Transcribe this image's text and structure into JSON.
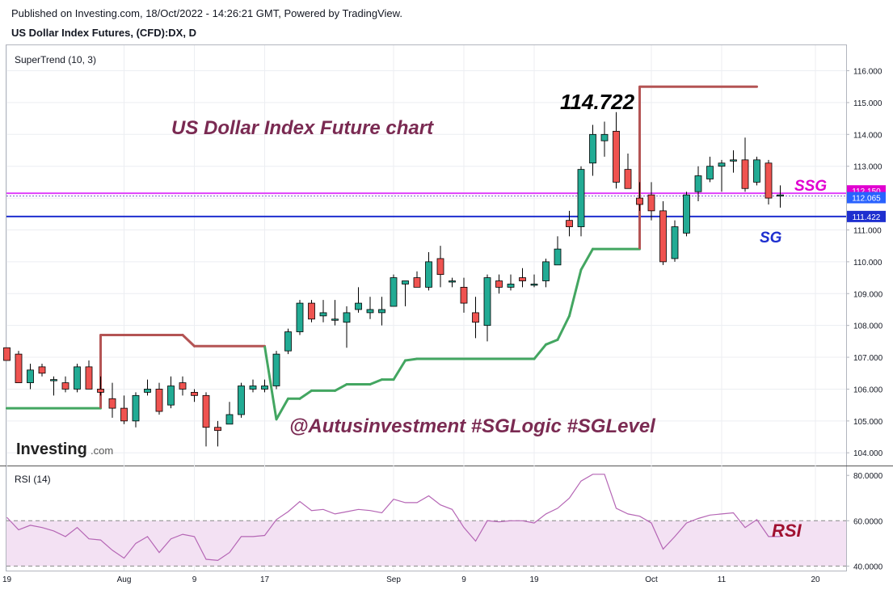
{
  "header": {
    "published": "Published on Investing.com, 18/Oct/2022 - 14:26:21 GMT, Powered by TradingView.",
    "symbol": "US Dollar Index Futures, (CFD):DX, D"
  },
  "logo": {
    "text": "Investing",
    "suffix": ".com"
  },
  "colors": {
    "up": "#26a69a",
    "up_fill": "#22ab94",
    "down": "#ef5350",
    "supertrend_up": "#43a661",
    "supertrend_down": "#b45454",
    "ssg_line": "#e040fb",
    "sg_line": "#1e2fcf",
    "rsi_line": "#b566b5",
    "rsi_band": "#f3e1f3"
  },
  "chart_data": [
    {
      "type": "candlestick",
      "indicator_label": "SuperTrend (10, 3)",
      "ylim": [
        103.6,
        116.8
      ],
      "y_ticks": [
        "104.000",
        "105.000",
        "106.000",
        "107.000",
        "108.000",
        "109.000",
        "110.000",
        "111.000",
        "112.000",
        "113.000",
        "114.000",
        "115.000",
        "116.000"
      ],
      "x_ticks": [
        {
          "label": "19",
          "index": 0
        },
        {
          "label": "Aug",
          "index": 10
        },
        {
          "label": "9",
          "index": 16
        },
        {
          "label": "17",
          "index": 22
        },
        {
          "label": "Sep",
          "index": 33
        },
        {
          "label": "9",
          "index": 39
        },
        {
          "label": "19",
          "index": 45
        },
        {
          "label": "Oct",
          "index": 55
        },
        {
          "label": "11",
          "index": 61
        },
        {
          "label": "20",
          "index": 69
        }
      ],
      "candles": [
        {
          "o": 107.3,
          "h": 107.3,
          "l": 106.9,
          "c": 106.9
        },
        {
          "o": 107.1,
          "h": 107.2,
          "l": 106.2,
          "c": 106.2
        },
        {
          "o": 106.2,
          "h": 106.8,
          "l": 106.0,
          "c": 106.6
        },
        {
          "o": 106.7,
          "h": 106.8,
          "l": 106.4,
          "c": 106.5
        },
        {
          "o": 106.3,
          "h": 106.4,
          "l": 105.8,
          "c": 106.3
        },
        {
          "o": 106.2,
          "h": 106.4,
          "l": 105.9,
          "c": 106.0
        },
        {
          "o": 106.0,
          "h": 106.8,
          "l": 105.9,
          "c": 106.7
        },
        {
          "o": 106.7,
          "h": 106.9,
          "l": 106.0,
          "c": 106.0
        },
        {
          "o": 106.0,
          "h": 106.4,
          "l": 105.8,
          "c": 105.9
        },
        {
          "o": 105.7,
          "h": 106.2,
          "l": 105.1,
          "c": 105.4
        },
        {
          "o": 105.4,
          "h": 105.8,
          "l": 104.9,
          "c": 105.0
        },
        {
          "o": 105.0,
          "h": 105.9,
          "l": 104.8,
          "c": 105.8
        },
        {
          "o": 105.9,
          "h": 106.3,
          "l": 105.8,
          "c": 106.0
        },
        {
          "o": 106.0,
          "h": 106.2,
          "l": 105.2,
          "c": 105.3
        },
        {
          "o": 105.5,
          "h": 106.4,
          "l": 105.4,
          "c": 106.1
        },
        {
          "o": 106.2,
          "h": 106.4,
          "l": 105.8,
          "c": 106.0
        },
        {
          "o": 105.9,
          "h": 106.0,
          "l": 105.6,
          "c": 105.8
        },
        {
          "o": 105.8,
          "h": 105.9,
          "l": 104.2,
          "c": 104.8
        },
        {
          "o": 104.8,
          "h": 105.0,
          "l": 104.2,
          "c": 104.7
        },
        {
          "o": 104.9,
          "h": 105.6,
          "l": 104.9,
          "c": 105.2
        },
        {
          "o": 105.2,
          "h": 106.2,
          "l": 105.1,
          "c": 106.1
        },
        {
          "o": 106.0,
          "h": 106.3,
          "l": 105.9,
          "c": 106.1
        },
        {
          "o": 106.0,
          "h": 106.3,
          "l": 105.9,
          "c": 106.1
        },
        {
          "o": 106.1,
          "h": 107.2,
          "l": 106.0,
          "c": 107.1
        },
        {
          "o": 107.2,
          "h": 107.9,
          "l": 107.1,
          "c": 107.8
        },
        {
          "o": 107.8,
          "h": 108.8,
          "l": 107.7,
          "c": 108.7
        },
        {
          "o": 108.7,
          "h": 108.8,
          "l": 108.1,
          "c": 108.2
        },
        {
          "o": 108.3,
          "h": 108.8,
          "l": 108.1,
          "c": 108.4
        },
        {
          "o": 108.2,
          "h": 108.8,
          "l": 108.0,
          "c": 108.2
        },
        {
          "o": 108.1,
          "h": 108.6,
          "l": 107.3,
          "c": 108.4
        },
        {
          "o": 108.5,
          "h": 109.2,
          "l": 108.4,
          "c": 108.7
        },
        {
          "o": 108.4,
          "h": 108.9,
          "l": 108.2,
          "c": 108.5
        },
        {
          "o": 108.4,
          "h": 108.9,
          "l": 108.0,
          "c": 108.5
        },
        {
          "o": 108.6,
          "h": 109.6,
          "l": 108.6,
          "c": 109.5
        },
        {
          "o": 109.3,
          "h": 109.4,
          "l": 108.6,
          "c": 109.4
        },
        {
          "o": 109.5,
          "h": 109.7,
          "l": 109.2,
          "c": 109.2
        },
        {
          "o": 109.2,
          "h": 110.3,
          "l": 109.1,
          "c": 110.0
        },
        {
          "o": 110.1,
          "h": 110.5,
          "l": 109.2,
          "c": 109.6
        },
        {
          "o": 109.4,
          "h": 109.5,
          "l": 109.2,
          "c": 109.4
        },
        {
          "o": 109.2,
          "h": 109.5,
          "l": 108.4,
          "c": 108.7
        },
        {
          "o": 108.4,
          "h": 108.9,
          "l": 107.6,
          "c": 108.1
        },
        {
          "o": 108.0,
          "h": 109.6,
          "l": 107.5,
          "c": 109.5
        },
        {
          "o": 109.4,
          "h": 109.6,
          "l": 109.0,
          "c": 109.2
        },
        {
          "o": 109.2,
          "h": 109.6,
          "l": 109.1,
          "c": 109.3
        },
        {
          "o": 109.5,
          "h": 109.8,
          "l": 109.2,
          "c": 109.4
        },
        {
          "o": 109.3,
          "h": 109.6,
          "l": 109.2,
          "c": 109.3
        },
        {
          "o": 109.4,
          "h": 110.1,
          "l": 109.2,
          "c": 110.0
        },
        {
          "o": 109.9,
          "h": 110.8,
          "l": 109.9,
          "c": 110.4
        },
        {
          "o": 111.3,
          "h": 111.6,
          "l": 110.8,
          "c": 111.1
        },
        {
          "o": 111.1,
          "h": 113.0,
          "l": 110.8,
          "c": 112.9
        },
        {
          "o": 113.1,
          "h": 114.3,
          "l": 112.7,
          "c": 114.0
        },
        {
          "o": 113.8,
          "h": 114.4,
          "l": 113.3,
          "c": 114.0
        },
        {
          "o": 114.1,
          "h": 114.7,
          "l": 112.3,
          "c": 112.5
        },
        {
          "o": 112.9,
          "h": 113.4,
          "l": 112.3,
          "c": 112.3
        },
        {
          "o": 112.0,
          "h": 112.5,
          "l": 111.6,
          "c": 111.8
        },
        {
          "o": 112.1,
          "h": 112.5,
          "l": 111.3,
          "c": 111.6
        },
        {
          "o": 111.6,
          "h": 111.9,
          "l": 109.9,
          "c": 110.0
        },
        {
          "o": 110.1,
          "h": 111.3,
          "l": 110.0,
          "c": 111.1
        },
        {
          "o": 110.9,
          "h": 112.2,
          "l": 110.8,
          "c": 112.1
        },
        {
          "o": 112.2,
          "h": 113.0,
          "l": 111.9,
          "c": 112.7
        },
        {
          "o": 112.6,
          "h": 113.3,
          "l": 112.5,
          "c": 113.0
        },
        {
          "o": 113.0,
          "h": 113.2,
          "l": 112.2,
          "c": 113.1
        },
        {
          "o": 113.2,
          "h": 113.5,
          "l": 112.8,
          "c": 113.2
        },
        {
          "o": 113.2,
          "h": 113.9,
          "l": 112.2,
          "c": 112.3
        },
        {
          "o": 112.5,
          "h": 113.3,
          "l": 112.4,
          "c": 113.2
        },
        {
          "o": 113.1,
          "h": 113.2,
          "l": 111.8,
          "c": 112.0
        },
        {
          "o": 112.1,
          "h": 112.4,
          "l": 111.7,
          "c": 112.1
        }
      ],
      "supertrend": [
        {
          "i": 0,
          "v": 105.4,
          "trend": "up"
        },
        {
          "i": 8,
          "v": 105.4,
          "trend": "up"
        },
        {
          "i": 8,
          "v": 107.7,
          "trend": "down"
        },
        {
          "i": 15,
          "v": 107.7,
          "trend": "down"
        },
        {
          "i": 16,
          "v": 107.35,
          "trend": "down"
        },
        {
          "i": 22,
          "v": 107.35,
          "trend": "down"
        },
        {
          "i": 23,
          "v": 105.05,
          "trend": "up"
        },
        {
          "i": 24,
          "v": 105.7,
          "trend": "up"
        },
        {
          "i": 25,
          "v": 105.7,
          "trend": "up"
        },
        {
          "i": 26,
          "v": 105.95,
          "trend": "up"
        },
        {
          "i": 28,
          "v": 105.95,
          "trend": "up"
        },
        {
          "i": 29,
          "v": 106.15,
          "trend": "up"
        },
        {
          "i": 31,
          "v": 106.15,
          "trend": "up"
        },
        {
          "i": 32,
          "v": 106.3,
          "trend": "up"
        },
        {
          "i": 33,
          "v": 106.3,
          "trend": "up"
        },
        {
          "i": 34,
          "v": 106.9,
          "trend": "up"
        },
        {
          "i": 35,
          "v": 106.95,
          "trend": "up"
        },
        {
          "i": 45,
          "v": 106.95,
          "trend": "up"
        },
        {
          "i": 46,
          "v": 107.4,
          "trend": "up"
        },
        {
          "i": 47,
          "v": 107.55,
          "trend": "up"
        },
        {
          "i": 48,
          "v": 108.3,
          "trend": "up"
        },
        {
          "i": 49,
          "v": 109.75,
          "trend": "up"
        },
        {
          "i": 50,
          "v": 110.4,
          "trend": "up"
        },
        {
          "i": 54,
          "v": 110.4,
          "trend": "up"
        },
        {
          "i": 54,
          "v": 115.5,
          "trend": "down"
        },
        {
          "i": 64,
          "v": 115.5,
          "trend": "down"
        }
      ],
      "hlines": [
        {
          "value": 112.15,
          "label": "112.150",
          "name": "SSG"
        },
        {
          "value": 112.065,
          "label": "112.065",
          "name": "last"
        },
        {
          "value": 111.422,
          "label": "111.422",
          "name": "SG"
        }
      ]
    },
    {
      "type": "line",
      "indicator_label": "RSI (14)",
      "ylim": [
        38,
        84
      ],
      "y_ticks": [
        "40.0000",
        "60.0000",
        "80.0000"
      ],
      "band": [
        40,
        60
      ],
      "values": [
        61.5,
        56,
        58,
        57,
        55.5,
        53,
        57,
        52,
        51.5,
        47,
        43.5,
        50,
        53,
        46,
        52,
        54,
        53,
        43,
        42.5,
        46,
        53,
        53,
        53.5,
        60.5,
        64,
        68.5,
        64.5,
        65,
        63,
        64,
        65,
        64.5,
        63.5,
        69.5,
        68,
        68,
        71,
        67,
        65,
        57,
        51,
        60,
        59.5,
        60,
        60,
        59,
        63,
        65.5,
        70,
        77.5,
        80.5,
        80.5,
        65.5,
        63,
        62,
        59,
        47.5,
        53,
        59,
        61,
        62.5,
        63,
        63.5,
        57,
        60.5,
        53,
        53
      ]
    }
  ],
  "annotations": {
    "peak_value": "114.722",
    "chart_title": "US Dollar Index Future chart",
    "handle": "@Autusinvestment  #SGLogic  #SGLevel",
    "ssg": "SSG",
    "sg": "SG",
    "rsi": "RSI"
  }
}
